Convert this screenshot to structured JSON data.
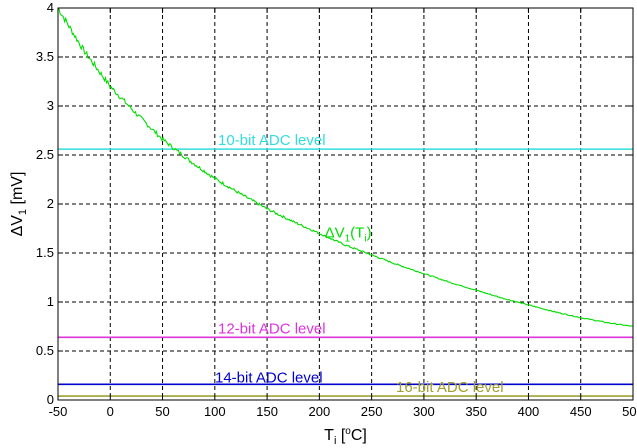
{
  "chart_data": {
    "type": "line",
    "title": "",
    "xlabel": {
      "main": "T",
      "sub": "i",
      "unit_pre": " [",
      "unit_sup": "o",
      "unit_post": "C]"
    },
    "ylabel": {
      "main": "ΔV",
      "sub": "1",
      "unit": "  [mV]"
    },
    "xlim": [
      -50,
      500
    ],
    "ylim": [
      0,
      4
    ],
    "x_ticks": [
      -50,
      0,
      50,
      100,
      150,
      200,
      250,
      300,
      350,
      400,
      450,
      500
    ],
    "y_ticks": [
      0,
      0.5,
      1,
      1.5,
      2,
      2.5,
      3,
      3.5,
      4
    ],
    "x_tick_labels": [
      "-50",
      "0",
      "50",
      "100",
      "150",
      "200",
      "250",
      "300",
      "350",
      "400",
      "450",
      "500"
    ],
    "y_tick_labels": [
      "0",
      "0.5",
      "1",
      "1.5",
      "2",
      "2.5",
      "3",
      "3.5",
      "4"
    ],
    "grid": true,
    "series": [
      {
        "name": "ΔV1(Ti)",
        "label": {
          "main": "ΔV",
          "sub1": "1",
          "mid": "(T",
          "sub2": "i",
          "end": ")"
        },
        "color": "#00dd00",
        "x": [
          -50,
          -25,
          0,
          25,
          50,
          75,
          100,
          125,
          150,
          175,
          200,
          225,
          250,
          275,
          300,
          325,
          350,
          375,
          400,
          425,
          450,
          475,
          500
        ],
        "y": [
          4.0,
          3.56,
          3.2,
          2.92,
          2.66,
          2.45,
          2.26,
          2.1,
          1.95,
          1.82,
          1.7,
          1.58,
          1.48,
          1.38,
          1.29,
          1.2,
          1.12,
          1.04,
          0.97,
          0.9,
          0.84,
          0.79,
          0.75
        ]
      }
    ],
    "reference_lines": [
      {
        "name": "10-bit ADC level",
        "y": 2.56,
        "color": "#33dddd"
      },
      {
        "name": "12-bit ADC level",
        "y": 0.64,
        "color": "#dd33dd"
      },
      {
        "name": "14-bit ADC level",
        "y": 0.16,
        "color": "#0000cc"
      },
      {
        "name": "16-bit ADC level",
        "y": 0.04,
        "color": "#a0a030"
      }
    ]
  }
}
